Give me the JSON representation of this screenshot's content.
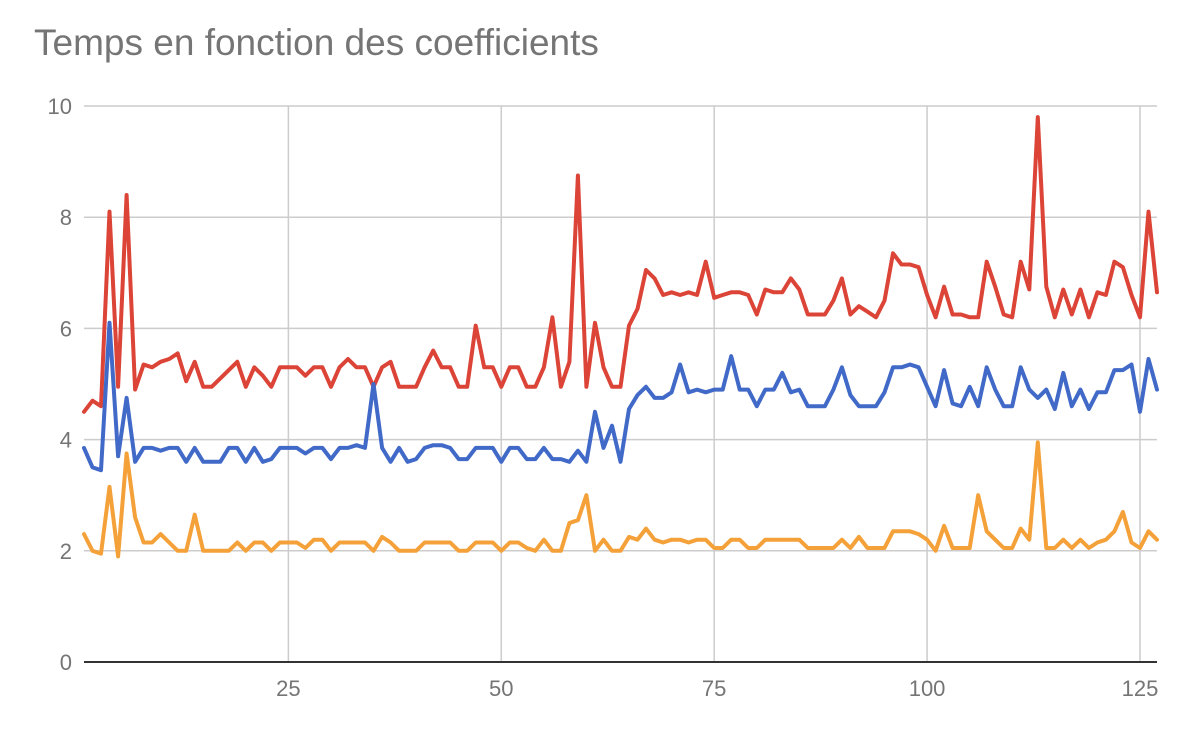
{
  "chart_data": {
    "type": "line",
    "title": "Temps en fonction des coefficients",
    "xlabel": "",
    "ylabel": "",
    "xlim": [
      1,
      127
    ],
    "ylim": [
      0,
      10
    ],
    "x_ticks": [
      25,
      50,
      75,
      100,
      125
    ],
    "y_ticks": [
      0,
      2,
      4,
      6,
      8,
      10
    ],
    "grid": true,
    "legend": "none",
    "colors": {
      "red": "#db4437",
      "blue": "#4169c8",
      "orange": "#f5a13a",
      "grid": "#cccccc",
      "text": "#757575"
    },
    "series": [
      {
        "color": "#db4437",
        "values": [
          4.5,
          4.7,
          4.6,
          8.1,
          4.95,
          8.4,
          4.9,
          5.35,
          5.3,
          5.4,
          5.45,
          5.55,
          5.05,
          5.4,
          4.95,
          4.95,
          5.1,
          5.25,
          5.4,
          4.95,
          5.3,
          5.15,
          4.95,
          5.3,
          5.3,
          5.3,
          5.15,
          5.3,
          5.3,
          4.95,
          5.3,
          5.45,
          5.3,
          5.3,
          4.95,
          5.3,
          5.4,
          4.95,
          4.95,
          4.95,
          5.3,
          5.6,
          5.3,
          5.3,
          4.95,
          4.95,
          6.05,
          5.3,
          5.3,
          4.95,
          5.3,
          5.3,
          4.95,
          4.95,
          5.3,
          6.2,
          4.95,
          5.4,
          8.75,
          4.95,
          6.1,
          5.3,
          4.95,
          4.95,
          6.05,
          6.35,
          7.05,
          6.9,
          6.6,
          6.65,
          6.6,
          6.65,
          6.6,
          7.2,
          6.55,
          6.6,
          6.65,
          6.65,
          6.6,
          6.25,
          6.7,
          6.65,
          6.65,
          6.9,
          6.7,
          6.25,
          6.25,
          6.25,
          6.5,
          6.9,
          6.25,
          6.4,
          6.3,
          6.2,
          6.5,
          7.35,
          7.15,
          7.15,
          7.1,
          6.6,
          6.2,
          6.75,
          6.25,
          6.25,
          6.2,
          6.2,
          7.2,
          6.75,
          6.25,
          6.2,
          7.2,
          6.7,
          9.8,
          6.75,
          6.2,
          6.7,
          6.25,
          6.7,
          6.2,
          6.65,
          6.6,
          7.2,
          7.1,
          6.6,
          6.2,
          8.1,
          6.65
        ]
      },
      {
        "color": "#4169c8",
        "values": [
          3.85,
          3.5,
          3.45,
          6.1,
          3.7,
          4.75,
          3.6,
          3.85,
          3.85,
          3.8,
          3.85,
          3.85,
          3.6,
          3.85,
          3.6,
          3.6,
          3.6,
          3.85,
          3.85,
          3.6,
          3.85,
          3.6,
          3.65,
          3.85,
          3.85,
          3.85,
          3.75,
          3.85,
          3.85,
          3.65,
          3.85,
          3.85,
          3.9,
          3.85,
          5.0,
          3.85,
          3.6,
          3.85,
          3.6,
          3.65,
          3.85,
          3.9,
          3.9,
          3.85,
          3.65,
          3.65,
          3.85,
          3.85,
          3.85,
          3.6,
          3.85,
          3.85,
          3.65,
          3.65,
          3.85,
          3.65,
          3.65,
          3.6,
          3.8,
          3.6,
          4.5,
          3.85,
          4.25,
          3.6,
          4.55,
          4.8,
          4.95,
          4.75,
          4.75,
          4.85,
          5.35,
          4.85,
          4.9,
          4.85,
          4.9,
          4.9,
          5.5,
          4.9,
          4.9,
          4.6,
          4.9,
          4.9,
          5.2,
          4.85,
          4.9,
          4.6,
          4.6,
          4.6,
          4.9,
          5.3,
          4.8,
          4.6,
          4.6,
          4.6,
          4.85,
          5.3,
          5.3,
          5.35,
          5.3,
          4.95,
          4.6,
          5.25,
          4.65,
          4.6,
          4.95,
          4.6,
          5.3,
          4.9,
          4.6,
          4.6,
          5.3,
          4.9,
          4.75,
          4.9,
          4.55,
          5.2,
          4.6,
          4.9,
          4.55,
          4.85,
          4.85,
          5.25,
          5.25,
          5.35,
          4.5,
          5.45,
          4.9
        ]
      },
      {
        "color": "#f5a13a",
        "values": [
          2.3,
          2.0,
          1.95,
          3.15,
          1.9,
          3.75,
          2.6,
          2.15,
          2.15,
          2.3,
          2.15,
          2.0,
          2.0,
          2.65,
          2.0,
          2.0,
          2.0,
          2.0,
          2.15,
          2.0,
          2.15,
          2.15,
          2.0,
          2.15,
          2.15,
          2.15,
          2.05,
          2.2,
          2.2,
          2.0,
          2.15,
          2.15,
          2.15,
          2.15,
          2.0,
          2.25,
          2.15,
          2.0,
          2.0,
          2.0,
          2.15,
          2.15,
          2.15,
          2.15,
          2.0,
          2.0,
          2.15,
          2.15,
          2.15,
          2.0,
          2.15,
          2.15,
          2.05,
          2.0,
          2.2,
          2.0,
          2.0,
          2.5,
          2.55,
          3.0,
          2.0,
          2.2,
          2.0,
          2.0,
          2.25,
          2.2,
          2.4,
          2.2,
          2.15,
          2.2,
          2.2,
          2.15,
          2.2,
          2.2,
          2.05,
          2.05,
          2.2,
          2.2,
          2.05,
          2.05,
          2.2,
          2.2,
          2.2,
          2.2,
          2.2,
          2.05,
          2.05,
          2.05,
          2.05,
          2.2,
          2.05,
          2.25,
          2.05,
          2.05,
          2.05,
          2.35,
          2.35,
          2.35,
          2.3,
          2.2,
          2.0,
          2.45,
          2.05,
          2.05,
          2.05,
          3.0,
          2.35,
          2.2,
          2.05,
          2.05,
          2.4,
          2.2,
          3.95,
          2.05,
          2.05,
          2.2,
          2.05,
          2.2,
          2.05,
          2.15,
          2.2,
          2.35,
          2.7,
          2.15,
          2.05,
          2.35,
          2.2
        ]
      }
    ]
  }
}
